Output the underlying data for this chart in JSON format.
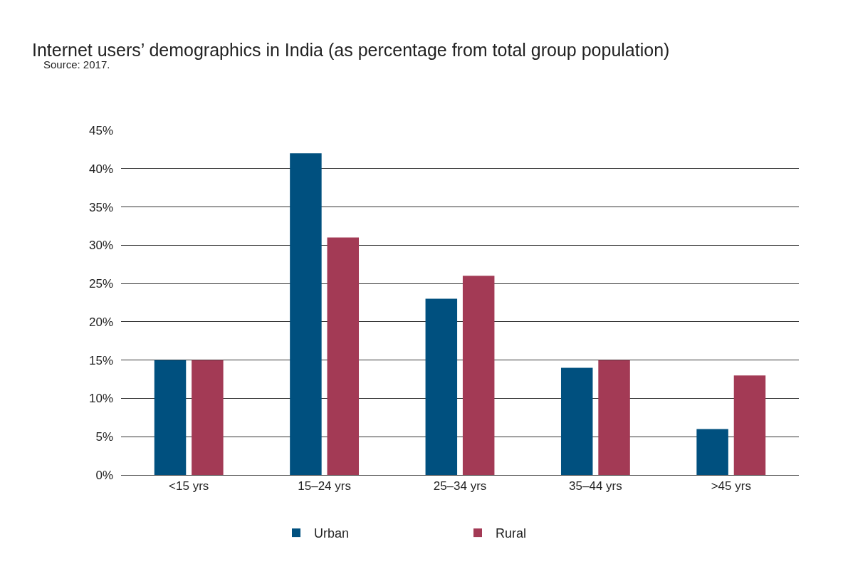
{
  "chart_data": {
    "type": "bar",
    "title": "Internet users’ demographics in India (as percentage from total group population)",
    "annotations": [
      "Source: 2017."
    ],
    "categories": [
      "<15 yrs",
      "15–24 yrs",
      "25–34 yrs",
      "35–44 yrs",
      ">45 yrs"
    ],
    "series": [
      {
        "name": "Urban",
        "color": "#00507f",
        "values": [
          15,
          42,
          23,
          14,
          6
        ]
      },
      {
        "name": "Rural",
        "color": "#a33a55",
        "values": [
          15,
          31,
          26,
          15,
          13
        ]
      }
    ],
    "ylim": [
      0,
      45
    ],
    "yticks": [
      {
        "value": 0,
        "label": "0%"
      },
      {
        "value": 5,
        "label": "5%"
      },
      {
        "value": 10,
        "label": "10%"
      },
      {
        "value": 15,
        "label": "15%"
      },
      {
        "value": 20,
        "label": "20%"
      },
      {
        "value": 25,
        "label": "25%"
      },
      {
        "value": 30,
        "label": "30%"
      },
      {
        "value": 35,
        "label": "35%"
      },
      {
        "value": 40,
        "label": "40%"
      },
      {
        "value": 45,
        "label": "45%"
      }
    ],
    "grid": "y",
    "legend": "bottom"
  }
}
